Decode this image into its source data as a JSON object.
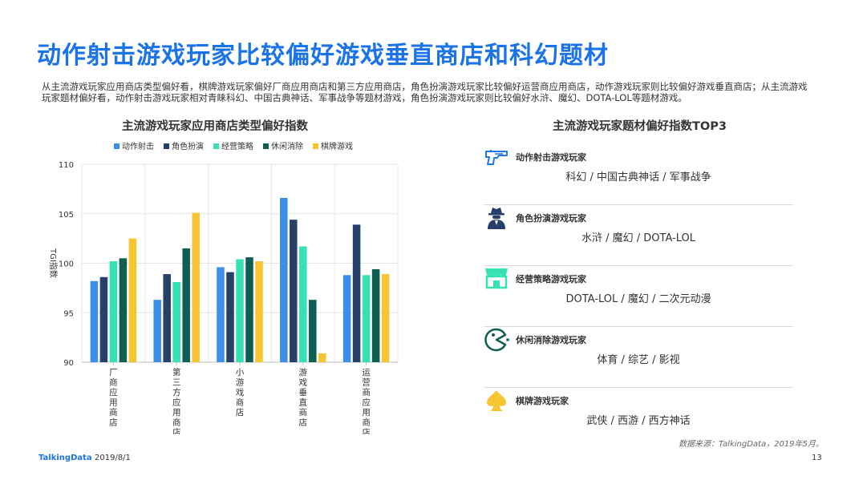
{
  "title": "动作射击游戏玩家比较偏好游戏垂直商店和科幻题材",
  "description": "从主流游戏玩家应用商店类型偏好看，棋牌游戏玩家偏好厂商应用商店和第三方应用商店，角色扮演游戏玩家比较偏好运营商应用商店，动作游戏玩家则比较偏好游戏垂直商店；从主流游戏玩家题材偏好看，动作射击游戏玩家相对青睐科幻、中国古典神话、军事战争等题材游戏，角色扮演游戏玩家则比较偏好水浒、魔幻、DOTA-LOL等题材游戏。",
  "chart_data": {
    "type": "bar",
    "title": "主流游戏玩家应用商店类型偏好指数",
    "ylabel": "TGI指数",
    "xlabel": "",
    "ylim": [
      90,
      110
    ],
    "yticks": [
      90,
      95,
      100,
      105,
      110
    ],
    "grid": true,
    "legend_position": "top",
    "categories": [
      "厂商应用商店",
      "第三方应用商店",
      "小游戏商店",
      "游戏垂直商店",
      "运营商应用商店"
    ],
    "series": [
      {
        "name": "动作射击",
        "color": "#3c8fe8",
        "values": [
          98.2,
          96.3,
          99.6,
          106.6,
          98.8
        ]
      },
      {
        "name": "角色扮演",
        "color": "#263f6b",
        "values": [
          98.6,
          98.9,
          99.1,
          104.4,
          103.9
        ]
      },
      {
        "name": "经营策略",
        "color": "#36e2b4",
        "values": [
          100.2,
          98.1,
          100.4,
          101.7,
          98.8
        ]
      },
      {
        "name": "休闲消除",
        "color": "#0f5e52",
        "values": [
          100.5,
          101.5,
          100.6,
          96.3,
          99.4
        ]
      },
      {
        "name": "棋牌游戏",
        "color": "#f7c531",
        "values": [
          102.5,
          105.1,
          100.2,
          90.9,
          98.9
        ]
      }
    ]
  },
  "right_panel": {
    "title": "主流游戏玩家题材偏好指数TOP3",
    "rows": [
      {
        "name": "动作射击游戏玩家",
        "tags": "科幻  /  中国古典神话  /  军事战争",
        "icon": "gun-icon"
      },
      {
        "name": "角色扮演游戏玩家",
        "tags": "水浒  /  魔幻  /  DOTA-LOL",
        "icon": "spy-icon"
      },
      {
        "name": "经营策略游戏玩家",
        "tags": "DOTA-LOL  /  魔幻  /  二次元动漫",
        "icon": "shop-icon"
      },
      {
        "name": "休闲消除游戏玩家",
        "tags": "体育  /  综艺  /  影视",
        "icon": "pacman-icon"
      },
      {
        "name": "棋牌游戏玩家",
        "tags": "武侠  /  西游  /  西方神话",
        "icon": "spade-icon"
      }
    ]
  },
  "source": "数据来源：TalkingData，2019年5月。",
  "footer": {
    "logo": "TalkingData",
    "date": "2019/8/1",
    "page": "13"
  },
  "colors": {
    "title_blue": "#1a73e8",
    "icon_blue": "#1f77e8",
    "icon_navy": "#263f6b",
    "icon_green": "#36e2b4",
    "icon_dark_green": "#0f5e52",
    "icon_yellow": "#f7c531"
  }
}
